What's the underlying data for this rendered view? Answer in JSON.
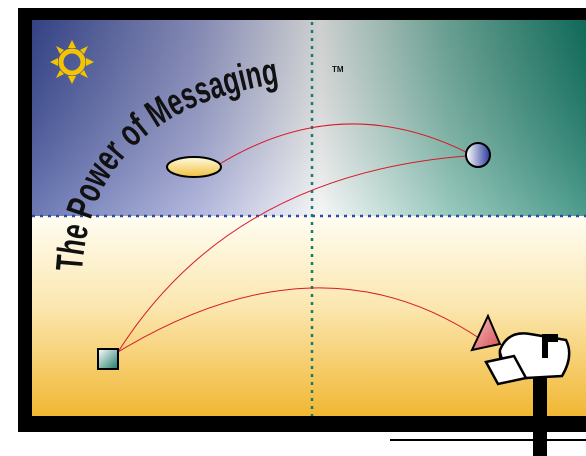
{
  "title": "The Power of Messaging",
  "trademark": "TM"
}
